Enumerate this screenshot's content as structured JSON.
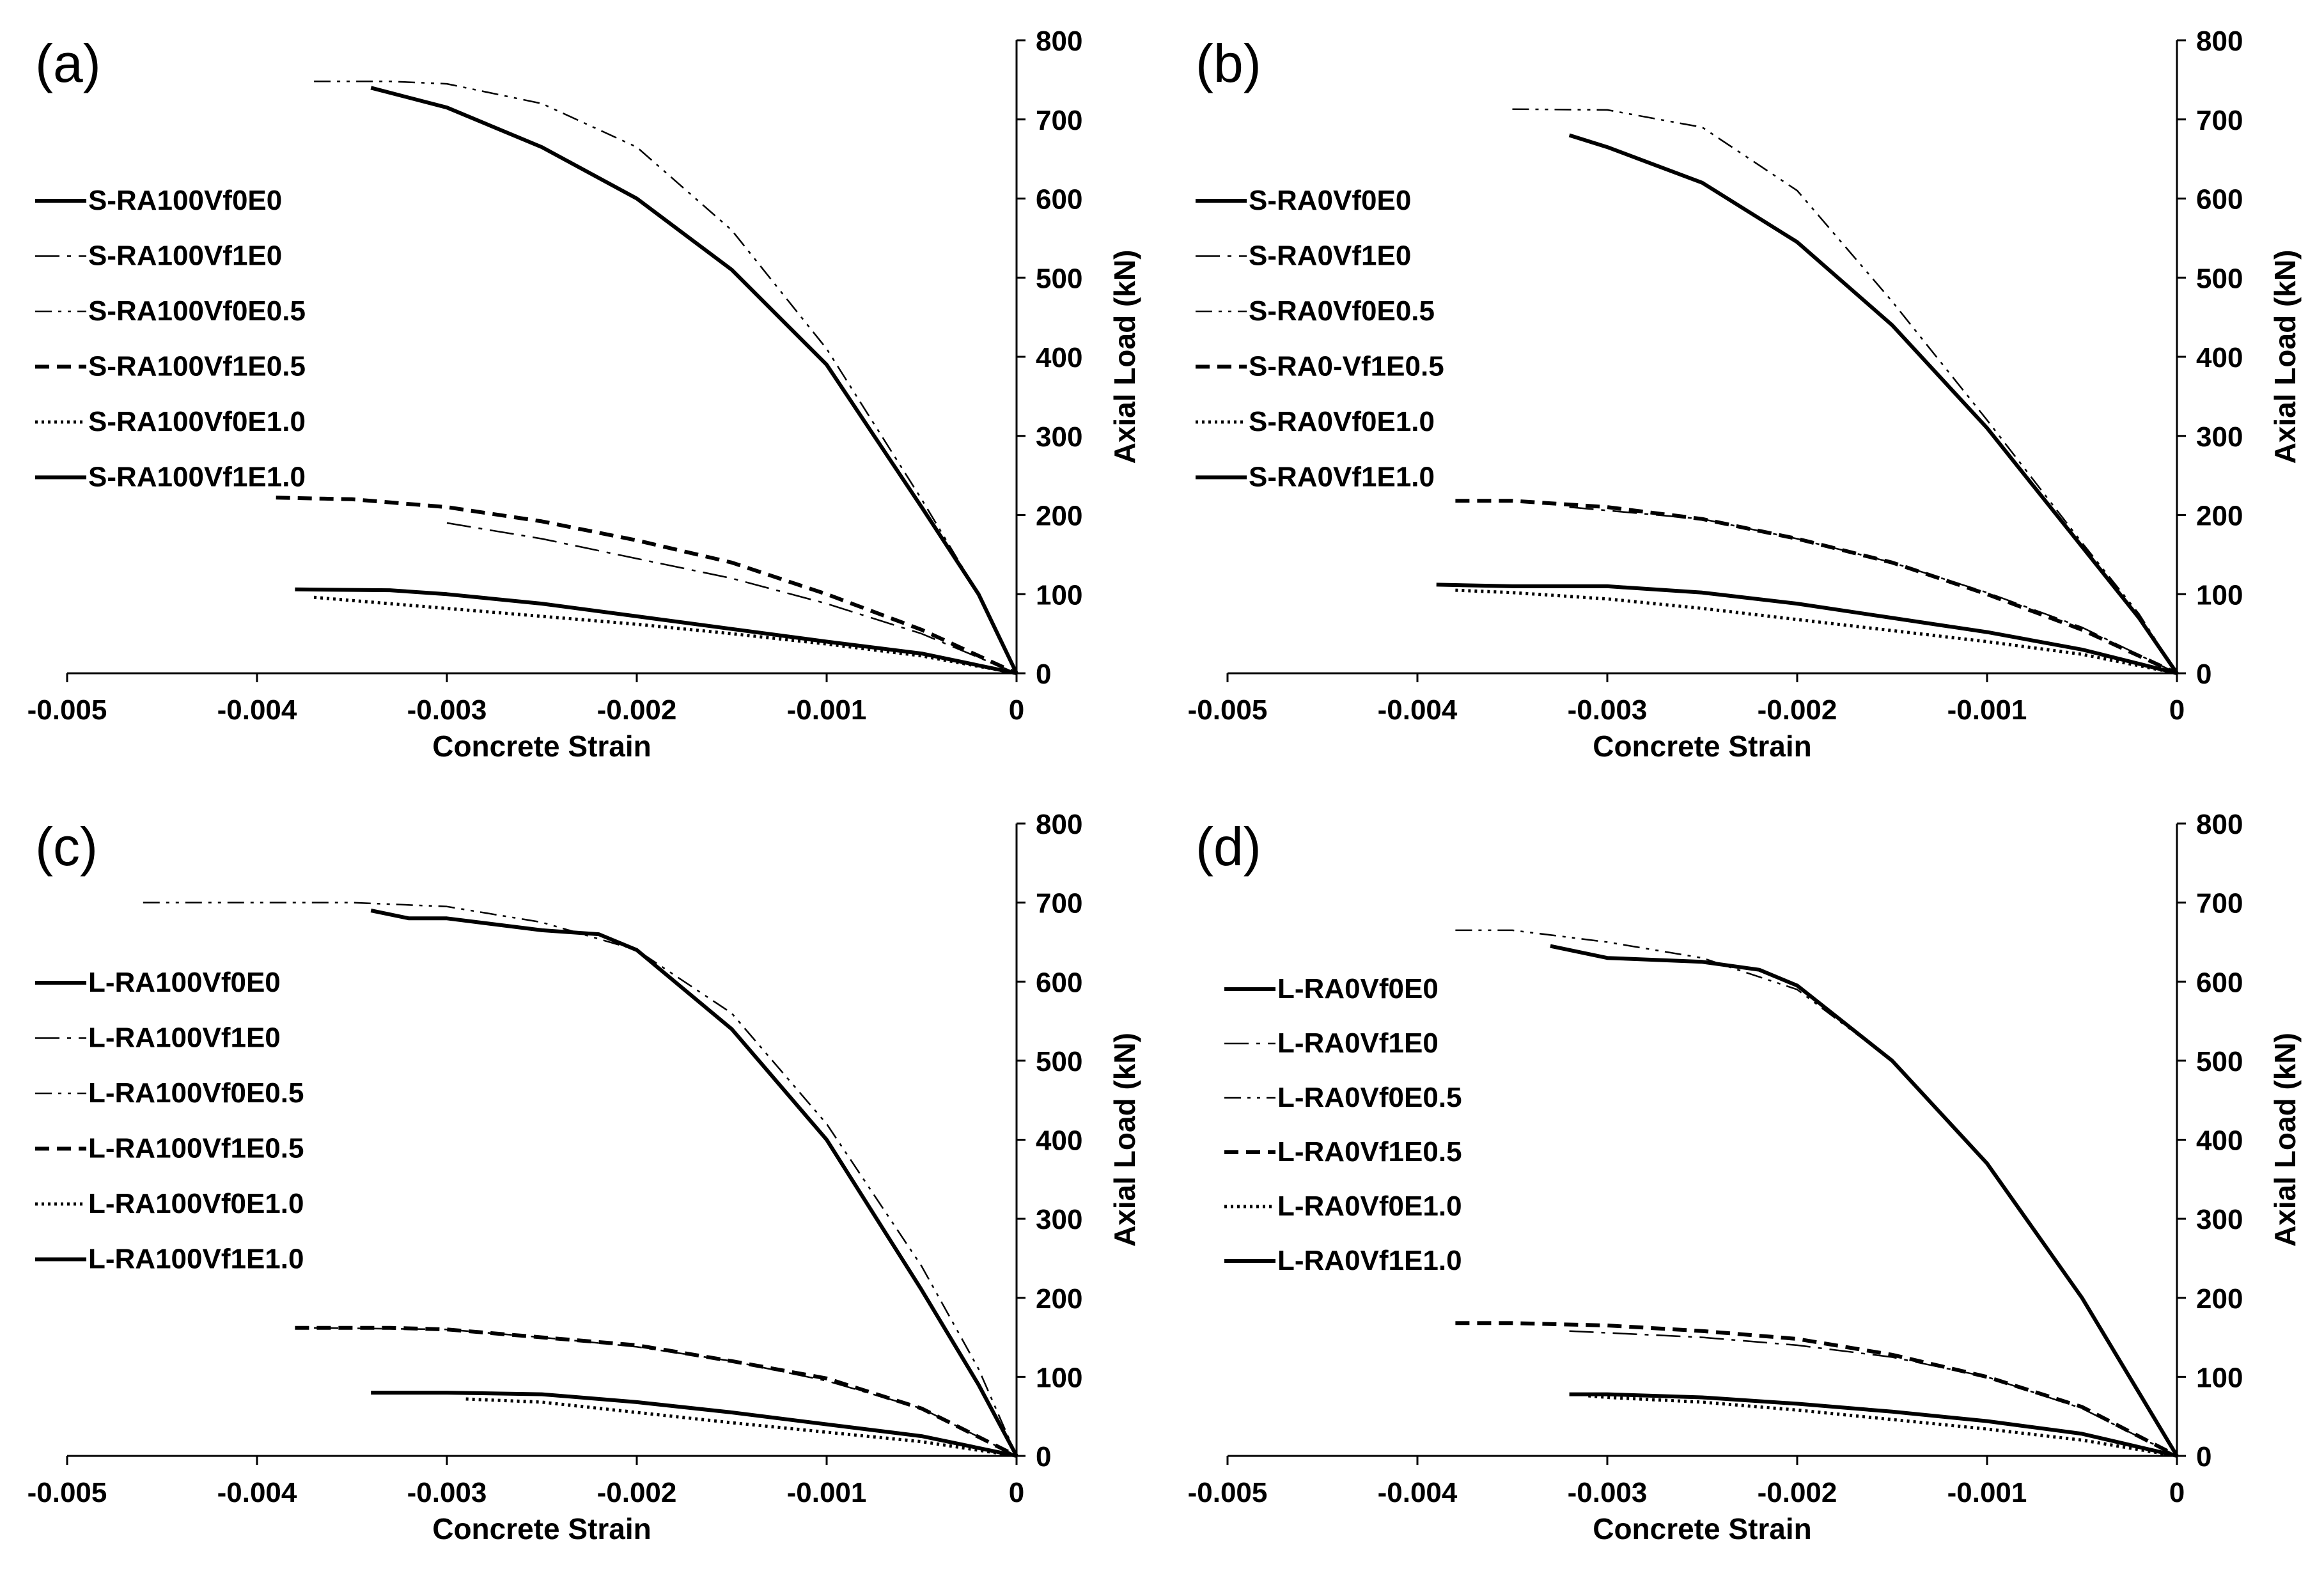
{
  "chart_data": [
    {
      "panel": "(a)",
      "type": "line",
      "xlabel": "Concrete Strain",
      "ylabel": "Axial Load (kN)",
      "xlim": [
        -0.005,
        0
      ],
      "ylim": [
        0,
        800
      ],
      "xticks": [
        -0.005,
        -0.004,
        -0.003,
        -0.002,
        -0.001,
        0
      ],
      "xtick_labels": [
        "-0.005",
        "-0.004",
        "-0.003",
        "-0.002",
        "-0.001",
        "0"
      ],
      "yticks": [
        0,
        100,
        200,
        300,
        400,
        500,
        600,
        700,
        800
      ],
      "ytick_labels": [
        "0",
        "100",
        "200",
        "300",
        "400",
        "500",
        "600",
        "700",
        "800"
      ],
      "legend_position": "left",
      "series": [
        {
          "name": "S-RA100Vf0E0",
          "style": "solid",
          "x": [
            -0.0034,
            -0.003,
            -0.0025,
            -0.002,
            -0.0015,
            -0.001,
            -0.0005,
            -0.0002,
            0
          ],
          "y": [
            740,
            715,
            665,
            600,
            510,
            390,
            210,
            100,
            0
          ]
        },
        {
          "name": "S-RA100Vf1E0",
          "style": "dashdot-thin",
          "x": [
            -0.003,
            -0.0025,
            -0.002,
            -0.0015,
            -0.001,
            -0.0005,
            0
          ],
          "y": [
            190,
            170,
            145,
            120,
            88,
            50,
            0
          ]
        },
        {
          "name": "S-RA100Vf0E0.5",
          "style": "dashdotdot",
          "x": [
            -0.0037,
            -0.0033,
            -0.003,
            -0.0025,
            -0.002,
            -0.0015,
            -0.001,
            -0.0005,
            -0.0002,
            0
          ],
          "y": [
            748,
            748,
            745,
            720,
            665,
            560,
            410,
            220,
            100,
            0
          ]
        },
        {
          "name": "S-RA100Vf1E0.5",
          "style": "dashed",
          "x": [
            -0.0039,
            -0.0035,
            -0.003,
            -0.0025,
            -0.002,
            -0.0015,
            -0.001,
            -0.0005,
            0
          ],
          "y": [
            222,
            220,
            210,
            192,
            168,
            140,
            100,
            55,
            0
          ]
        },
        {
          "name": "S-RA100Vf0E1.0",
          "style": "dotted",
          "x": [
            -0.0037,
            -0.0033,
            -0.003,
            -0.0025,
            -0.002,
            -0.0015,
            -0.001,
            -0.0005,
            0
          ],
          "y": [
            96,
            88,
            82,
            72,
            62,
            50,
            37,
            22,
            0
          ]
        },
        {
          "name": "S-RA100Vf1E1.0",
          "style": "solid",
          "x": [
            -0.0038,
            -0.0033,
            -0.003,
            -0.0025,
            -0.002,
            -0.0015,
            -0.001,
            -0.0005,
            0
          ],
          "y": [
            106,
            105,
            100,
            88,
            72,
            56,
            40,
            25,
            0
          ]
        }
      ]
    },
    {
      "panel": "(b)",
      "type": "line",
      "xlabel": "Concrete Strain",
      "ylabel": "Axial Load (kN)",
      "xlim": [
        -0.005,
        0
      ],
      "ylim": [
        0,
        800
      ],
      "xticks": [
        -0.005,
        -0.004,
        -0.003,
        -0.002,
        -0.001,
        0
      ],
      "xtick_labels": [
        "-0.005",
        "-0.004",
        "-0.003",
        "-0.002",
        "-0.001",
        "0"
      ],
      "yticks": [
        0,
        100,
        200,
        300,
        400,
        500,
        600,
        700,
        800
      ],
      "ytick_labels": [
        "0",
        "100",
        "200",
        "300",
        "400",
        "500",
        "600",
        "700",
        "800"
      ],
      "legend_position": "left",
      "series": [
        {
          "name": "S-RA0Vf0E0",
          "style": "solid",
          "x": [
            -0.0032,
            -0.003,
            -0.0025,
            -0.002,
            -0.0015,
            -0.001,
            -0.0005,
            -0.0002,
            0
          ],
          "y": [
            680,
            665,
            620,
            545,
            440,
            310,
            160,
            70,
            0
          ]
        },
        {
          "name": "S-RA0Vf1E0",
          "style": "dashdot-thin",
          "x": [
            -0.0032,
            -0.0025,
            -0.002,
            -0.0015,
            -0.001,
            -0.0005,
            0
          ],
          "y": [
            210,
            195,
            170,
            140,
            102,
            58,
            0
          ]
        },
        {
          "name": "S-RA0Vf0E0.5",
          "style": "dashdotdot",
          "x": [
            -0.0035,
            -0.003,
            -0.0025,
            -0.002,
            -0.0015,
            -0.001,
            -0.0005,
            -0.0002,
            0
          ],
          "y": [
            713,
            712,
            690,
            610,
            470,
            320,
            165,
            75,
            0
          ]
        },
        {
          "name": "S-RA0-Vf1E0.5",
          "style": "dashed",
          "x": [
            -0.0038,
            -0.0035,
            -0.003,
            -0.0025,
            -0.002,
            -0.0015,
            -0.001,
            -0.0005,
            0
          ],
          "y": [
            218,
            218,
            210,
            195,
            170,
            140,
            100,
            55,
            0
          ]
        },
        {
          "name": "S-RA0Vf0E1.0",
          "style": "dotted",
          "x": [
            -0.0038,
            -0.0035,
            -0.003,
            -0.0025,
            -0.002,
            -0.0015,
            -0.001,
            -0.0005,
            0
          ],
          "y": [
            105,
            102,
            94,
            82,
            68,
            54,
            40,
            24,
            0
          ]
        },
        {
          "name": "S-RA0Vf1E1.0",
          "style": "solid",
          "x": [
            -0.0039,
            -0.0035,
            -0.003,
            -0.0025,
            -0.002,
            -0.0015,
            -0.001,
            -0.0005,
            0
          ],
          "y": [
            112,
            110,
            110,
            102,
            88,
            70,
            52,
            30,
            0
          ]
        }
      ]
    },
    {
      "panel": "(c)",
      "type": "line",
      "xlabel": "Concrete Strain",
      "ylabel": "Axial Load (kN)",
      "xlim": [
        -0.005,
        0
      ],
      "ylim": [
        0,
        800
      ],
      "xticks": [
        -0.005,
        -0.004,
        -0.003,
        -0.002,
        -0.001,
        0
      ],
      "xtick_labels": [
        "-0.005",
        "-0.004",
        "-0.003",
        "-0.002",
        "-0.001",
        "0"
      ],
      "yticks": [
        0,
        100,
        200,
        300,
        400,
        500,
        600,
        700,
        800
      ],
      "ytick_labels": [
        "0",
        "100",
        "200",
        "300",
        "400",
        "500",
        "600",
        "700",
        "800"
      ],
      "legend_position": "left",
      "series": [
        {
          "name": "L-RA100Vf0E0",
          "style": "solid",
          "x": [
            -0.0034,
            -0.0032,
            -0.003,
            -0.0025,
            -0.0022,
            -0.002,
            -0.0015,
            -0.001,
            -0.0005,
            -0.0002,
            0
          ],
          "y": [
            690,
            680,
            680,
            665,
            660,
            640,
            540,
            400,
            210,
            90,
            0
          ]
        },
        {
          "name": "L-RA100Vf1E0",
          "style": "dashdot-thin",
          "x": [
            -0.0037,
            -0.003,
            -0.0025,
            -0.002,
            -0.0015,
            -0.001,
            -0.0005,
            0
          ],
          "y": [
            162,
            160,
            150,
            138,
            120,
            95,
            60,
            0
          ]
        },
        {
          "name": "L-RA100Vf0E0.5",
          "style": "dashdotdot",
          "x": [
            -0.0046,
            -0.0035,
            -0.003,
            -0.0025,
            -0.002,
            -0.0015,
            -0.001,
            -0.0005,
            -0.0002,
            0
          ],
          "y": [
            700,
            700,
            695,
            675,
            640,
            560,
            420,
            240,
            110,
            0
          ]
        },
        {
          "name": "L-RA100Vf1E0.5",
          "style": "dashed",
          "x": [
            -0.0038,
            -0.0033,
            -0.003,
            -0.0025,
            -0.002,
            -0.0015,
            -0.001,
            -0.0005,
            0
          ],
          "y": [
            162,
            162,
            160,
            150,
            140,
            120,
            98,
            60,
            0
          ]
        },
        {
          "name": "L-RA100Vf0E1.0",
          "style": "dotted",
          "x": [
            -0.0029,
            -0.0025,
            -0.002,
            -0.0015,
            -0.001,
            -0.0005,
            0
          ],
          "y": [
            72,
            68,
            55,
            42,
            30,
            18,
            0
          ]
        },
        {
          "name": "L-RA100Vf1E1.0",
          "style": "solid",
          "x": [
            -0.0034,
            -0.003,
            -0.0025,
            -0.002,
            -0.0015,
            -0.001,
            -0.0005,
            0
          ],
          "y": [
            80,
            80,
            78,
            68,
            55,
            40,
            25,
            0
          ]
        }
      ]
    },
    {
      "panel": "(d)",
      "type": "line",
      "xlabel": "Concrete Strain",
      "ylabel": "Axial Load (kN)",
      "xlim": [
        -0.005,
        0
      ],
      "ylim": [
        0,
        800
      ],
      "xticks": [
        -0.005,
        -0.004,
        -0.003,
        -0.002,
        -0.001,
        0
      ],
      "xtick_labels": [
        "-0.005",
        "-0.004",
        "-0.003",
        "-0.002",
        "-0.001",
        "0"
      ],
      "yticks": [
        0,
        100,
        200,
        300,
        400,
        500,
        600,
        700,
        800
      ],
      "ytick_labels": [
        "0",
        "100",
        "200",
        "300",
        "400",
        "500",
        "600",
        "700",
        "800"
      ],
      "legend_position": "left",
      "series": [
        {
          "name": "L-RA0Vf0E0",
          "style": "solid",
          "x": [
            -0.0033,
            -0.003,
            -0.0025,
            -0.0022,
            -0.002,
            -0.0015,
            -0.001,
            -0.0005,
            -0.0002,
            0
          ],
          "y": [
            645,
            630,
            625,
            615,
            595,
            500,
            370,
            200,
            80,
            0
          ]
        },
        {
          "name": "L-RA0Vf1E0",
          "style": "dashdot-thin",
          "x": [
            -0.0032,
            -0.0025,
            -0.002,
            -0.0015,
            -0.001,
            -0.0005,
            0
          ],
          "y": [
            158,
            150,
            140,
            125,
            100,
            60,
            0
          ]
        },
        {
          "name": "L-RA0Vf0E0.5",
          "style": "dashdotdot",
          "x": [
            -0.0038,
            -0.0035,
            -0.003,
            -0.0025,
            -0.002,
            -0.0015,
            -0.001,
            -0.0005,
            -0.0002,
            0
          ],
          "y": [
            665,
            665,
            650,
            630,
            590,
            500,
            370,
            200,
            80,
            0
          ]
        },
        {
          "name": "L-RA0Vf1E0.5",
          "style": "dashed",
          "x": [
            -0.0038,
            -0.0035,
            -0.003,
            -0.0025,
            -0.002,
            -0.0015,
            -0.001,
            -0.0005,
            0
          ],
          "y": [
            168,
            168,
            165,
            158,
            148,
            128,
            100,
            62,
            0
          ]
        },
        {
          "name": "L-RA0Vf0E1.0",
          "style": "dotted",
          "x": [
            -0.0031,
            -0.003,
            -0.0025,
            -0.002,
            -0.0015,
            -0.001,
            -0.0005,
            0
          ],
          "y": [
            76,
            74,
            68,
            58,
            46,
            34,
            20,
            0
          ]
        },
        {
          "name": "L-RA0Vf1E1.0",
          "style": "solid",
          "x": [
            -0.0032,
            -0.003,
            -0.0025,
            -0.002,
            -0.0015,
            -0.001,
            -0.0005,
            0
          ],
          "y": [
            78,
            78,
            74,
            66,
            56,
            44,
            28,
            0
          ]
        }
      ]
    }
  ]
}
